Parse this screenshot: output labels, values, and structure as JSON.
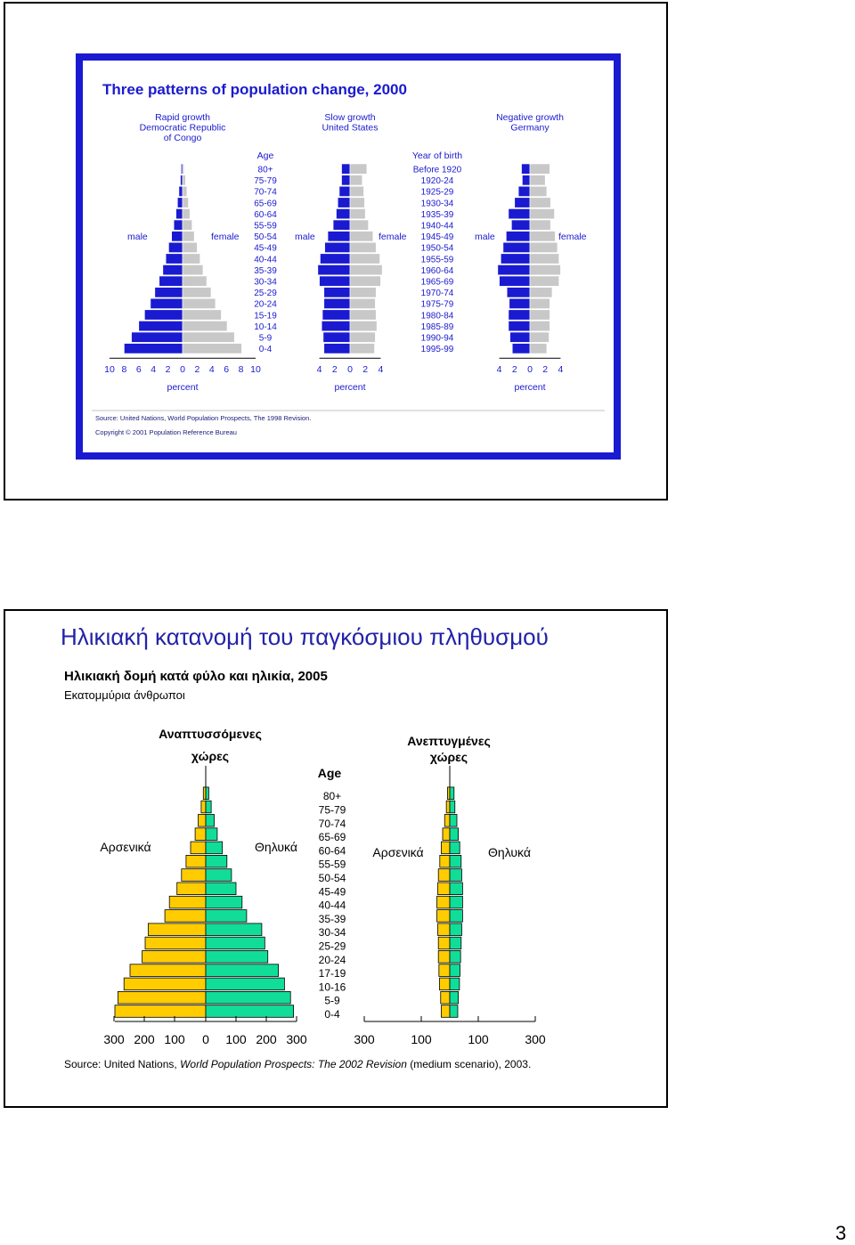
{
  "page_number": "3",
  "slide1": {
    "title": "Three patterns of population change, 2000",
    "panels": [
      {
        "heading_lines": [
          "Rapid growth",
          "Democratic Republic",
          "of Congo"
        ],
        "male": "male",
        "female": "female",
        "x_ticks": [
          "10",
          "8",
          "6",
          "4",
          "2",
          "0",
          "2",
          "4",
          "6",
          "8",
          "10"
        ],
        "x_label": "percent"
      },
      {
        "heading_lines": [
          "Slow growth",
          "United States"
        ],
        "male": "male",
        "female": "female",
        "x_ticks": [
          "4",
          "2",
          "0",
          "2",
          "4"
        ],
        "x_label": "percent"
      },
      {
        "heading_lines": [
          "Negative growth",
          "Germany"
        ],
        "male": "male",
        "female": "female",
        "x_ticks": [
          "4",
          "2",
          "0",
          "2",
          "4"
        ],
        "x_label": "percent"
      }
    ],
    "age_header": "Age",
    "age_groups": [
      "80+",
      "75-79",
      "70-74",
      "65-69",
      "60-64",
      "55-59",
      "50-54",
      "45-49",
      "40-44",
      "35-39",
      "30-34",
      "25-29",
      "20-24",
      "15-19",
      "10-14",
      "5-9",
      "0-4"
    ],
    "birth_header": "Year of birth",
    "birth_groups": [
      "Before 1920",
      "1920-24",
      "1925-29",
      "1930-34",
      "1935-39",
      "1940-44",
      "1945-49",
      "1950-54",
      "1955-59",
      "1960-64",
      "1965-69",
      "1970-74",
      "1975-79",
      "1980-84",
      "1985-89",
      "1990-94",
      "1995-99"
    ],
    "source": "Source: United Nations, World Population Prospects, The 1998 Revision.",
    "copyright": "Copyright © 2001 Population Reference Bureau",
    "colors": {
      "male": "#1a1ad0",
      "female": "#c8c8c8",
      "frame": "#1a1ad0",
      "title": "#1a1ad0"
    }
  },
  "slide2": {
    "title": "Ηλικιακή κατανομή του παγκόσμιου πληθυσμού",
    "subtitle": "Ηλικιακή δομή κατά φύλο και ηλικία, 2005",
    "unit": "Εκατομμύρια άνθρωποι",
    "left_heading": [
      "Αναπτυσσόμενες",
      "χώρες"
    ],
    "right_heading": [
      "Ανεπτυγμένες",
      "χώρες"
    ],
    "age_header": "Age",
    "age_groups": [
      "80+",
      "75-79",
      "70-74",
      "65-69",
      "60-64",
      "55-59",
      "50-54",
      "45-49",
      "40-44",
      "35-39",
      "30-34",
      "25-29",
      "20-24",
      "17-19",
      "10-16",
      "5-9",
      "0-4"
    ],
    "male": "Αρσενικά",
    "female": "Θηλυκά",
    "left_x_ticks": [
      "300",
      "200",
      "100",
      "0",
      "100",
      "200",
      "300"
    ],
    "right_x_ticks": [
      "300",
      "100",
      "100",
      "300"
    ],
    "source_pre": "Source: United Nations, ",
    "source_italic": "World Population Prospects: The 2002 Revision",
    "source_post": " (medium scenario), 2003.",
    "colors": {
      "male": "#ffcc00",
      "female": "#11dd99",
      "title": "#2222aa"
    }
  },
  "chart_data": [
    {
      "type": "bar",
      "title": "Three patterns of population change, 2000",
      "subtitle": "Rapid growth Democratic Republic of Congo",
      "xlabel": "percent",
      "categories": [
        "80+",
        "75-79",
        "70-74",
        "65-69",
        "60-64",
        "55-59",
        "50-54",
        "45-49",
        "40-44",
        "35-39",
        "30-34",
        "25-29",
        "20-24",
        "15-19",
        "10-14",
        "5-9",
        "0-4"
      ],
      "series": [
        {
          "name": "male",
          "values": [
            0.2,
            0.3,
            0.5,
            0.7,
            0.9,
            1.2,
            1.5,
            1.9,
            2.3,
            2.7,
            3.2,
            3.8,
            4.4,
            5.2,
            6.0,
            7.0,
            8.0
          ]
        },
        {
          "name": "female",
          "values": [
            0.2,
            0.4,
            0.6,
            0.8,
            1.0,
            1.3,
            1.6,
            2.0,
            2.4,
            2.8,
            3.3,
            3.9,
            4.5,
            5.3,
            6.1,
            7.1,
            8.1
          ]
        }
      ],
      "xlim": [
        -10,
        10
      ]
    },
    {
      "type": "bar",
      "title": "Three patterns of population change, 2000",
      "subtitle": "Slow growth United States",
      "xlabel": "percent",
      "categories": [
        "80+",
        "75-79",
        "70-74",
        "65-69",
        "60-64",
        "55-59",
        "50-54",
        "45-49",
        "40-44",
        "35-39",
        "30-34",
        "25-29",
        "20-24",
        "15-19",
        "10-14",
        "5-9",
        "0-4"
      ],
      "series": [
        {
          "name": "male",
          "values": [
            1.1,
            1.1,
            1.4,
            1.6,
            1.8,
            2.2,
            2.9,
            3.3,
            3.9,
            4.2,
            4.0,
            3.4,
            3.4,
            3.6,
            3.7,
            3.5,
            3.4
          ]
        },
        {
          "name": "female",
          "values": [
            2.2,
            1.6,
            1.8,
            1.9,
            2.0,
            2.4,
            3.0,
            3.4,
            3.9,
            4.2,
            4.0,
            3.4,
            3.3,
            3.4,
            3.5,
            3.3,
            3.2
          ]
        }
      ],
      "xlim": [
        -4,
        4
      ]
    },
    {
      "type": "bar",
      "title": "Three patterns of population change, 2000",
      "subtitle": "Negative growth Germany",
      "xlabel": "percent",
      "categories": [
        "80+",
        "75-79",
        "70-74",
        "65-69",
        "60-64",
        "55-59",
        "50-54",
        "45-49",
        "40-44",
        "35-39",
        "30-34",
        "25-29",
        "20-24",
        "15-19",
        "10-14",
        "5-9",
        "0-4"
      ],
      "series": [
        {
          "name": "male",
          "values": [
            1.1,
            1.0,
            1.5,
            2.0,
            2.8,
            2.4,
            3.1,
            3.5,
            3.8,
            4.2,
            4.0,
            3.0,
            2.7,
            2.8,
            2.8,
            2.6,
            2.3
          ]
        },
        {
          "name": "female",
          "values": [
            2.6,
            2.0,
            2.2,
            2.7,
            3.2,
            2.7,
            3.3,
            3.6,
            3.8,
            4.0,
            3.8,
            2.9,
            2.6,
            2.6,
            2.6,
            2.5,
            2.2
          ]
        }
      ],
      "xlim": [
        -4,
        4
      ]
    },
    {
      "type": "bar",
      "title": "Ηλικιακή δομή κατά φύλο και ηλικία, 2005",
      "subtitle": "Αναπτυσσόμενες χώρες",
      "ylabel": "Age",
      "categories": [
        "80+",
        "75-79",
        "70-74",
        "65-69",
        "60-64",
        "55-59",
        "50-54",
        "45-49",
        "40-44",
        "35-39",
        "30-34",
        "25-29",
        "20-24",
        "17-19",
        "10-16",
        "5-9",
        "0-4"
      ],
      "series": [
        {
          "name": "Αρσενικά",
          "values": [
            8,
            15,
            25,
            35,
            50,
            65,
            80,
            95,
            120,
            135,
            190,
            200,
            210,
            250,
            270,
            290,
            300
          ]
        },
        {
          "name": "Θηλυκά",
          "values": [
            10,
            18,
            28,
            38,
            55,
            70,
            85,
            100,
            120,
            135,
            185,
            195,
            205,
            240,
            260,
            280,
            290
          ]
        }
      ],
      "xlim": [
        -300,
        300
      ]
    },
    {
      "type": "bar",
      "title": "Ηλικιακή δομή κατά φύλο και ηλικία, 2005",
      "subtitle": "Ανεπτυγμένες χώρες",
      "categories": [
        "80+",
        "75-79",
        "70-74",
        "65-69",
        "60-64",
        "55-59",
        "50-54",
        "45-49",
        "40-44",
        "35-39",
        "30-34",
        "25-29",
        "20-24",
        "17-19",
        "10-16",
        "5-9",
        "0-4"
      ],
      "series": [
        {
          "name": "Αρσενικά",
          "values": [
            8,
            12,
            18,
            25,
            30,
            35,
            40,
            42,
            45,
            45,
            42,
            40,
            40,
            38,
            36,
            32,
            30
          ]
        },
        {
          "name": "Θηλυκά",
          "values": [
            15,
            18,
            25,
            30,
            35,
            40,
            42,
            45,
            45,
            45,
            42,
            40,
            38,
            36,
            34,
            30,
            28
          ]
        }
      ],
      "xlim": [
        -300,
        300
      ]
    }
  ]
}
